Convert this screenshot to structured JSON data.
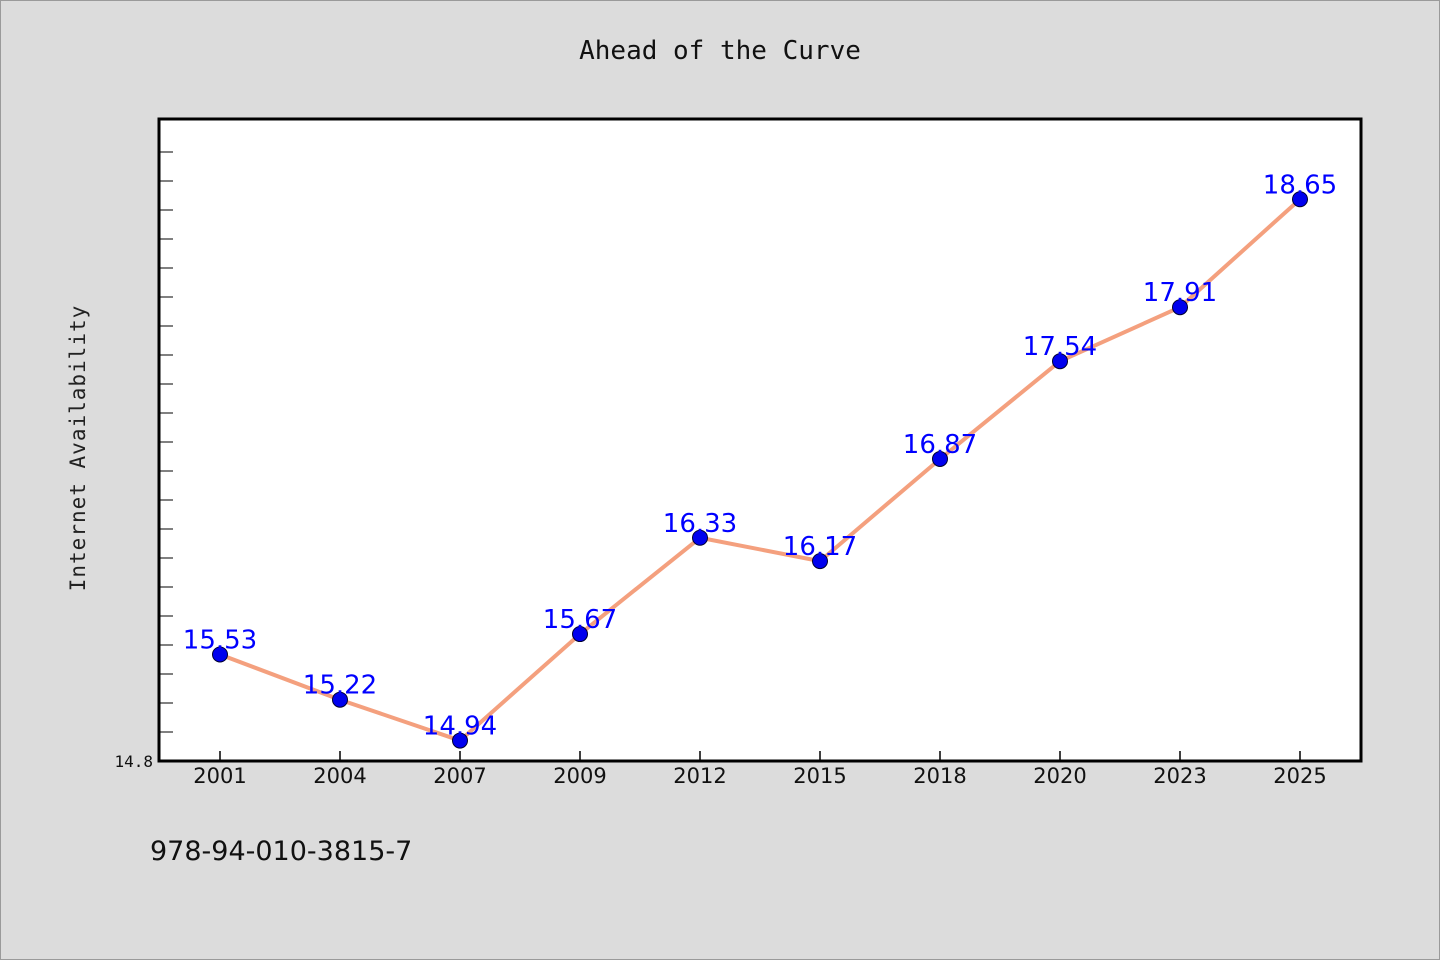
{
  "chart_data": {
    "type": "line",
    "title": "Ahead of the Curve",
    "xlabel": "",
    "ylabel": "Internet Availability",
    "categories": [
      "2001",
      "2004",
      "2007",
      "2009",
      "2012",
      "2015",
      "2018",
      "2020",
      "2023",
      "2025"
    ],
    "series": [
      {
        "values": [
          15.53,
          15.22,
          14.94,
          15.67,
          16.33,
          16.17,
          16.87,
          17.54,
          17.91,
          18.65
        ],
        "labels": [
          "15.53",
          "15.22",
          "14.94",
          "15.67",
          "16.33",
          "16.17",
          "16.87",
          "17.54",
          "17.91",
          "18.65"
        ]
      }
    ],
    "y_tick_labels": [
      "14.8"
    ],
    "ylim": [
      14.8,
      19.2
    ],
    "grid": false,
    "line_color": "#f4a07e",
    "marker_color": "#0000ee",
    "label_color": "#0000ff"
  },
  "footer": {
    "code": "978-94-010-3815-7"
  }
}
